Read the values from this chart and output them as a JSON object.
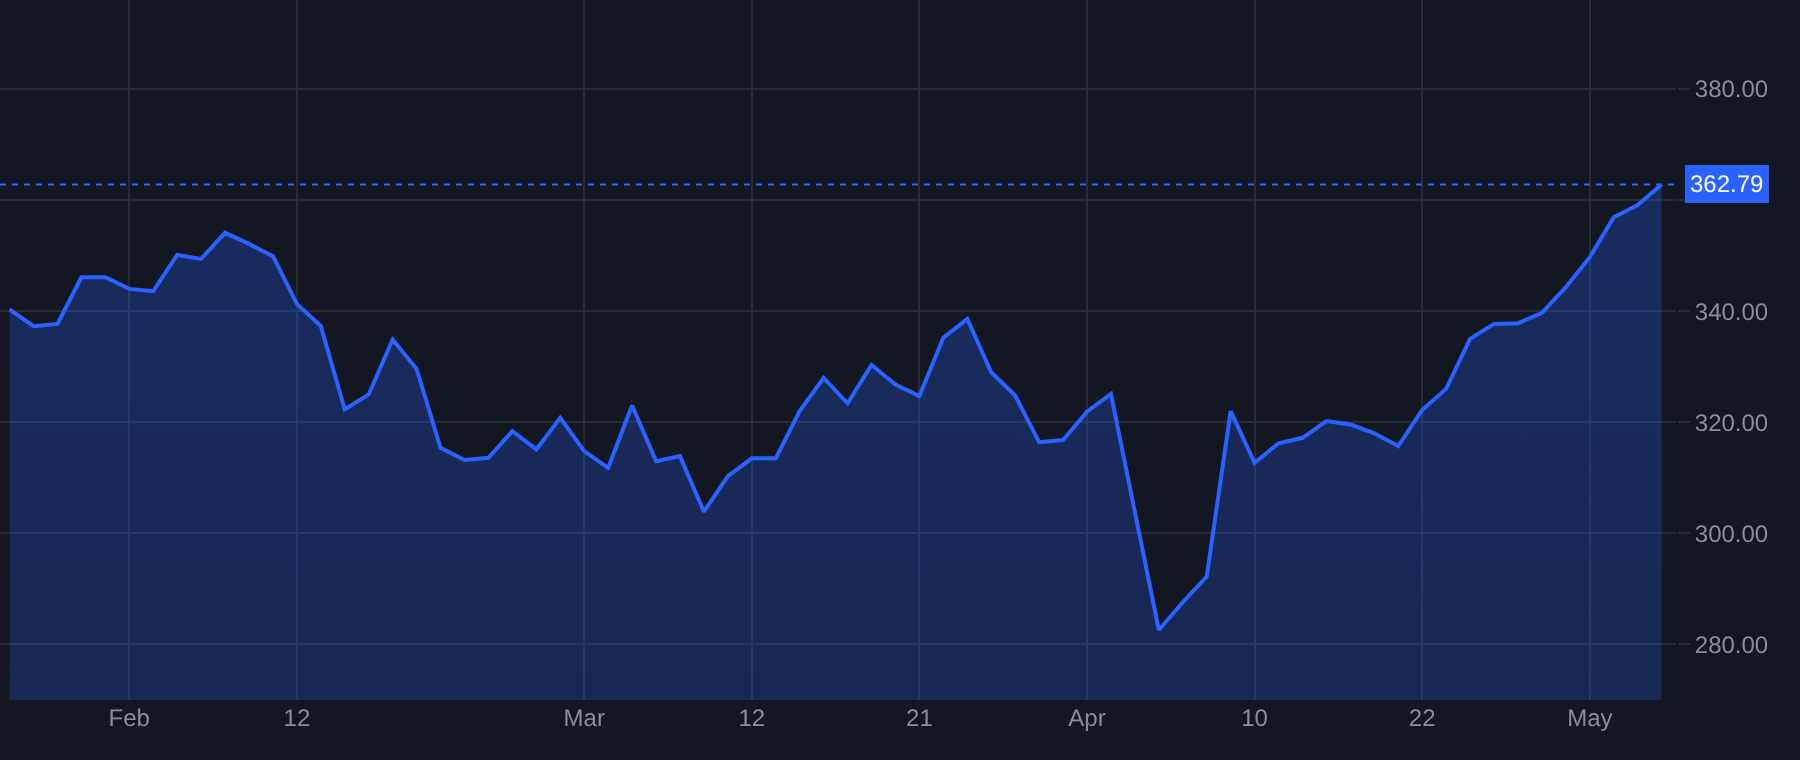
{
  "chart_data": {
    "type": "area",
    "color": "#2962ff",
    "categories": [
      null,
      null,
      null,
      null,
      null,
      "Feb",
      null,
      null,
      null,
      null,
      null,
      null,
      "12",
      null,
      null,
      null,
      null,
      null,
      null,
      null,
      null,
      null,
      null,
      null,
      "Mar",
      null,
      null,
      null,
      null,
      null,
      null,
      "12",
      null,
      null,
      null,
      null,
      null,
      null,
      "21",
      null,
      null,
      null,
      null,
      null,
      null,
      "Apr",
      null,
      null,
      null,
      null,
      null,
      null,
      "10",
      null,
      null,
      null,
      null,
      null,
      null,
      "22",
      null,
      null,
      null,
      null,
      null,
      null,
      "May",
      null,
      null,
      null
    ],
    "values": [
      340.3,
      337.3,
      337.7,
      346.1,
      346.1,
      344.0,
      343.6,
      350.1,
      349.4,
      354.1,
      352.1,
      349.9,
      341.3,
      337.3,
      322.3,
      325.0,
      334.9,
      329.6,
      315.4,
      313.2,
      313.6,
      318.4,
      315.1,
      320.8,
      314.8,
      311.8,
      323.0,
      313.0,
      313.9,
      303.9,
      310.3,
      313.5,
      313.5,
      322.0,
      328.0,
      323.4,
      330.3,
      326.8,
      324.7,
      335.2,
      338.6,
      329.0,
      324.8,
      316.4,
      316.8,
      321.9,
      325.1,
      303.8,
      282.6,
      287.6,
      292.2,
      322.0,
      312.7,
      316.2,
      317.2,
      320.2,
      319.6,
      318.0,
      315.7,
      322.2,
      326.0,
      335.0,
      337.7,
      337.8,
      339.7,
      344.3,
      349.7,
      356.9,
      359.1,
      362.79
    ],
    "ylim": [
      270,
      396
    ],
    "yticks": [
      {
        "value": 280,
        "label": "280.00"
      },
      {
        "value": 300,
        "label": "300.00"
      },
      {
        "value": 320,
        "label": "320.00"
      },
      {
        "value": 340,
        "label": "340.00"
      },
      {
        "value": 360,
        "label": null
      },
      {
        "value": 380,
        "label": "380.00"
      }
    ],
    "ref_lines": [
      {
        "axis": "y",
        "value": 362.79,
        "label": "362.79",
        "color": "#2962ff",
        "line_style": "dotted"
      }
    ],
    "grid": true,
    "marker": "none",
    "line_style": "solid"
  }
}
